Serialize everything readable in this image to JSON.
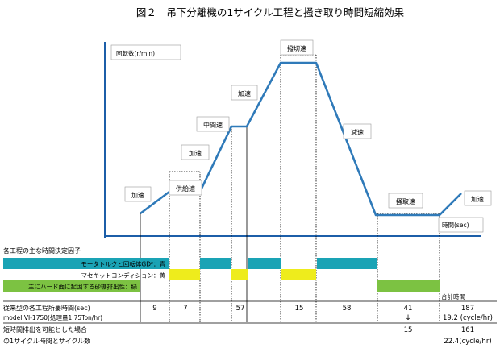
{
  "title": "図２　吊下分離機の1サイクル工程と掻き取り時間短縮効果",
  "axis": {
    "ylabel": "回転数(r/min)",
    "xlabel": "時間(sec)"
  },
  "phases": [
    "加速",
    "供給速",
    "加速",
    "中間速",
    "加速",
    "撥切速",
    "減速",
    "掻取速",
    "加速"
  ],
  "factors": {
    "heading": "各工程の主な時間決定因子",
    "items": [
      {
        "label": "モータトルクと回転体GD²：青",
        "color": "#1aa3b5"
      },
      {
        "label": "マセキットコンディション：黄",
        "color": "#eeec1c"
      },
      {
        "label": "主にハード面に起因する砂糖排出性：緑",
        "color": "#7cc242"
      }
    ]
  },
  "total_label": "合計時間",
  "rows": [
    {
      "label": "従来型の各工程所要時間(sec)",
      "values": [
        "9",
        "7",
        "57",
        "15",
        "58",
        "41",
        "187"
      ]
    },
    {
      "label": "model:VI-1750(処理量1.75Ton/hr)",
      "values": [
        "19.2 (cycle/hr)"
      ]
    },
    {
      "label": "短時間排出を可能とした場合",
      "values": [
        "15",
        "161"
      ]
    },
    {
      "label": "の1サイクル時間とサイクル数",
      "values": [
        "22.4(cycle/hr)"
      ]
    }
  ],
  "arrow": "↓",
  "colors": {
    "curve": "#2f7ab9",
    "axis": "#1c5ea8"
  }
}
